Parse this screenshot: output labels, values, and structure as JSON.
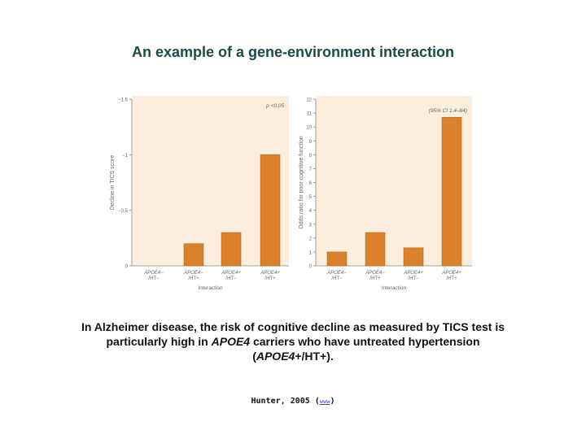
{
  "slide": {
    "title": "An example of a gene-environment interaction",
    "caption": {
      "part1": "In Alzheimer disease, the risk of cognitive decline as measured by TICS test is particularly high in ",
      "gene_italic": "APOE4",
      "part2": " carriers who have untreated hypertension (",
      "gene_italic2": "APOE4",
      "part3": "+/HT+)."
    },
    "citation": "Hunter, 2005",
    "citation_link": "www"
  },
  "colors": {
    "bar": "#d9822b",
    "bar_stroke": "#a8601a",
    "panel_bg": "#fbeedc",
    "axis": "#888888",
    "title": "#1a4a4a"
  },
  "chart_data": [
    {
      "type": "bar",
      "categories": [
        [
          "APOE4−",
          "/HT−"
        ],
        [
          "APOE4−",
          "/HT+"
        ],
        [
          "APOE4+",
          "/HT−"
        ],
        [
          "APOE4+",
          "/HT+"
        ]
      ],
      "values": [
        0.0,
        0.2,
        0.3,
        1.0
      ],
      "ylabel": "Decline in TICS score",
      "xlabel": "Interaction",
      "ylim": [
        0,
        1.5
      ],
      "yticks": [
        0,
        0.5,
        1,
        1.5
      ],
      "ytick_labels": [
        "0",
        "−0.5",
        "−1",
        "−1.5"
      ],
      "annotation": "p <0.05",
      "grid": false
    },
    {
      "type": "bar",
      "categories": [
        [
          "APOE4−",
          "/HT−"
        ],
        [
          "APOE4−",
          "/HT+"
        ],
        [
          "APOE4+",
          "/HT−"
        ],
        [
          "APOE4+",
          "/HT+"
        ]
      ],
      "values": [
        1.0,
        2.4,
        1.3,
        10.7
      ],
      "ylabel": "Odds ratio for poor cognitive function",
      "xlabel": "Interaction",
      "ylim": [
        0,
        12
      ],
      "yticks": [
        0,
        1,
        2,
        3,
        4,
        5,
        6,
        7,
        8,
        9,
        10,
        11,
        12
      ],
      "ytick_labels": [
        "0",
        "1",
        "2",
        "3",
        "4",
        "5",
        "6",
        "7",
        "8",
        "9",
        "10",
        "11",
        "12"
      ],
      "annotation": "(95% CI 1.4–84)",
      "grid": false
    }
  ]
}
